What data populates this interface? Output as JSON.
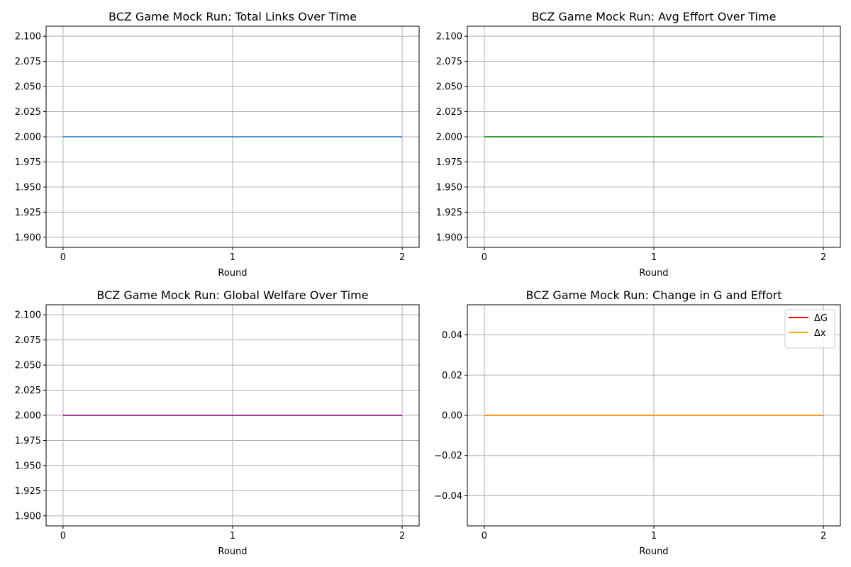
{
  "figure": {
    "background": "#ffffff",
    "grid_color": "#b0b0b0"
  },
  "chart_data": [
    {
      "type": "line",
      "title": "BCZ Game Mock Run: Total Links Over Time",
      "xlabel": "Round",
      "ylabel": "",
      "x": [
        0,
        1,
        2
      ],
      "xticks": [
        "0",
        "1",
        "2"
      ],
      "xlim": [
        -0.1,
        2.1
      ],
      "ylim": [
        1.89,
        2.11
      ],
      "yticks": [
        "1.900",
        "1.925",
        "1.950",
        "1.975",
        "2.000",
        "2.025",
        "2.050",
        "2.075",
        "2.100"
      ],
      "grid": true,
      "legend": null,
      "series": [
        {
          "values": [
            2.0,
            2.0,
            2.0
          ],
          "color": "#1f77b4"
        }
      ]
    },
    {
      "type": "line",
      "title": "BCZ Game Mock Run: Avg Effort Over Time",
      "xlabel": "Round",
      "ylabel": "",
      "x": [
        0,
        1,
        2
      ],
      "xticks": [
        "0",
        "1",
        "2"
      ],
      "xlim": [
        -0.1,
        2.1
      ],
      "ylim": [
        1.89,
        2.11
      ],
      "yticks": [
        "1.900",
        "1.925",
        "1.950",
        "1.975",
        "2.000",
        "2.025",
        "2.050",
        "2.075",
        "2.100"
      ],
      "grid": true,
      "legend": null,
      "series": [
        {
          "values": [
            2.0,
            2.0,
            2.0
          ],
          "color": "#008000"
        }
      ]
    },
    {
      "type": "line",
      "title": "BCZ Game Mock Run: Global Welfare Over Time",
      "xlabel": "Round",
      "ylabel": "",
      "x": [
        0,
        1,
        2
      ],
      "xticks": [
        "0",
        "1",
        "2"
      ],
      "xlim": [
        -0.1,
        2.1
      ],
      "ylim": [
        1.89,
        2.11
      ],
      "yticks": [
        "1.900",
        "1.925",
        "1.950",
        "1.975",
        "2.000",
        "2.025",
        "2.050",
        "2.075",
        "2.100"
      ],
      "grid": true,
      "legend": null,
      "series": [
        {
          "values": [
            2.0,
            2.0,
            2.0
          ],
          "color": "#800080"
        }
      ]
    },
    {
      "type": "line",
      "title": "BCZ Game Mock Run: Change in G and Effort",
      "xlabel": "Round",
      "ylabel": "",
      "x": [
        0,
        1,
        2
      ],
      "xticks": [
        "0",
        "1",
        "2"
      ],
      "xlim": [
        -0.1,
        2.1
      ],
      "ylim": [
        -0.055,
        0.055
      ],
      "yticks": [
        "−0.04",
        "−0.02",
        "0.00",
        "0.02",
        "0.04"
      ],
      "grid": true,
      "legend": "top-right",
      "series": [
        {
          "name": "ΔG",
          "values": [
            0.0,
            0.0,
            0.0
          ],
          "color": "#ff0000"
        },
        {
          "name": "Δx",
          "values": [
            0.0,
            0.0,
            0.0
          ],
          "color": "#ffa500"
        }
      ]
    }
  ]
}
